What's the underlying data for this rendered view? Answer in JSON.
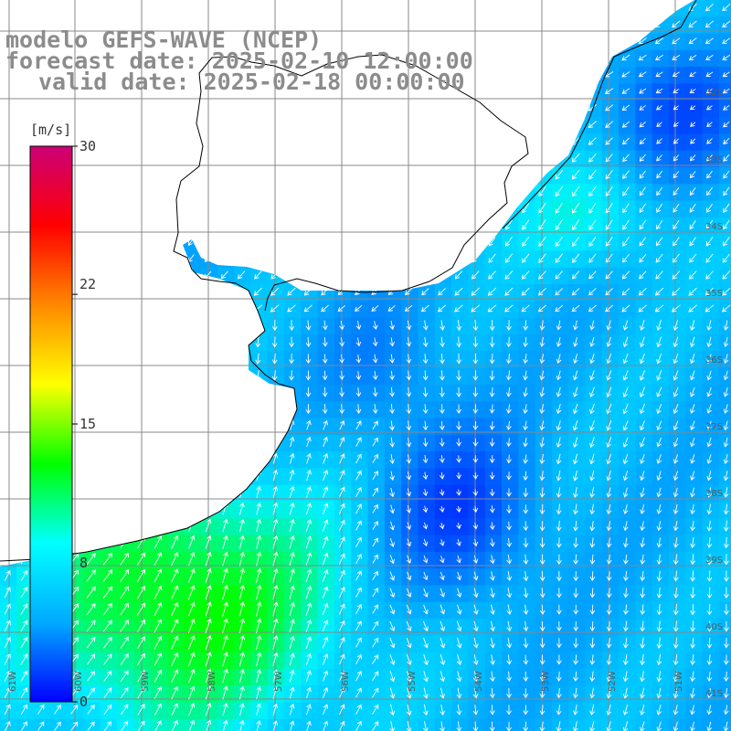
{
  "titles": {
    "model": "modelo GEFS-WAVE (NCEP)",
    "forecast": "forecast date: 2025-02-10 12:00:00",
    "valid": "valid date: 2025-02-18 00:00:00"
  },
  "colorbar": {
    "unit": "[m/s]",
    "ticks": [
      "30",
      "22",
      "15",
      "8",
      "0"
    ],
    "tick_values": [
      30,
      22,
      15,
      8,
      0
    ],
    "colors": [
      "#0000ff",
      "#00aaff",
      "#00ffff",
      "#00ff00",
      "#ffff00",
      "#ff8800",
      "#ff0000",
      "#cc0077"
    ]
  },
  "grid": {
    "lon_labels": [
      "61W",
      "60W",
      "59W",
      "58W",
      "57W",
      "56W",
      "55W",
      "54W",
      "53W",
      "52W",
      "51W"
    ],
    "lat_labels": [
      "32S",
      "33S",
      "34S",
      "35S",
      "36S",
      "37S",
      "38S",
      "39S",
      "40S",
      "41S"
    ]
  },
  "colors": {
    "land": "#ffffff",
    "coast": "#000000",
    "gridline": "#888888",
    "arrow": "#ffffff",
    "title": "#8c8c8c"
  }
}
